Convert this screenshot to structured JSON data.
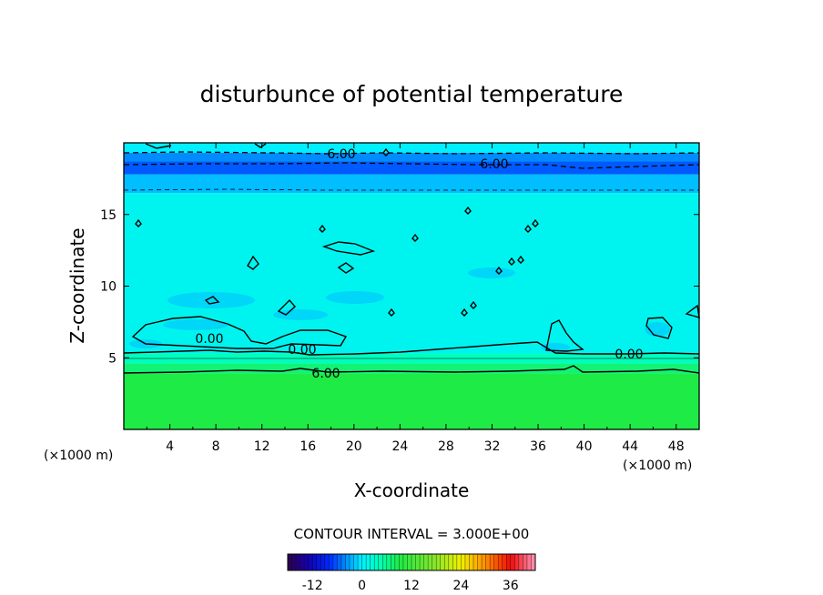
{
  "chart_data": {
    "type": "heatmap",
    "title": "disturbunce of potential temperature",
    "xlabel": "X-coordinate",
    "ylabel": "Z-coordinate",
    "x_unit": "(×1000 m)",
    "z_unit": "(×1000 m)",
    "xlim": [
      0,
      50
    ],
    "ylim": [
      0,
      20
    ],
    "x_ticks": [
      "4",
      "8",
      "12",
      "16",
      "20",
      "24",
      "28",
      "32",
      "36",
      "40",
      "44",
      "48"
    ],
    "y_ticks": [
      "5",
      "10",
      "15"
    ],
    "contour_interval_text": "CONTOUR INTERVAL = 3.000E+00",
    "colorbar": {
      "vmin": -18,
      "vmax": 42,
      "ticks": [
        "-12",
        "0",
        "12",
        "24",
        "36"
      ]
    },
    "contour_labels": [
      "6.00",
      "6.00",
      "0.00",
      "0.00",
      "0.00",
      "6.00"
    ],
    "bands": [
      {
        "z_from": 0,
        "z_to": 3.9,
        "value": 9
      },
      {
        "z_from": 3.9,
        "z_to": 4.6,
        "value": 7
      },
      {
        "z_from": 4.6,
        "z_to": 5.3,
        "value": 4
      },
      {
        "z_from": 5.3,
        "z_to": 16.5,
        "value": 1
      },
      {
        "z_from": 16.5,
        "z_to": 17.8,
        "value": -2
      },
      {
        "z_from": 17.8,
        "z_to": 18.7,
        "value": -6
      },
      {
        "z_from": 18.7,
        "z_to": 19.3,
        "value": -4
      },
      {
        "z_from": 19.3,
        "z_to": 20,
        "value": 0
      }
    ]
  }
}
